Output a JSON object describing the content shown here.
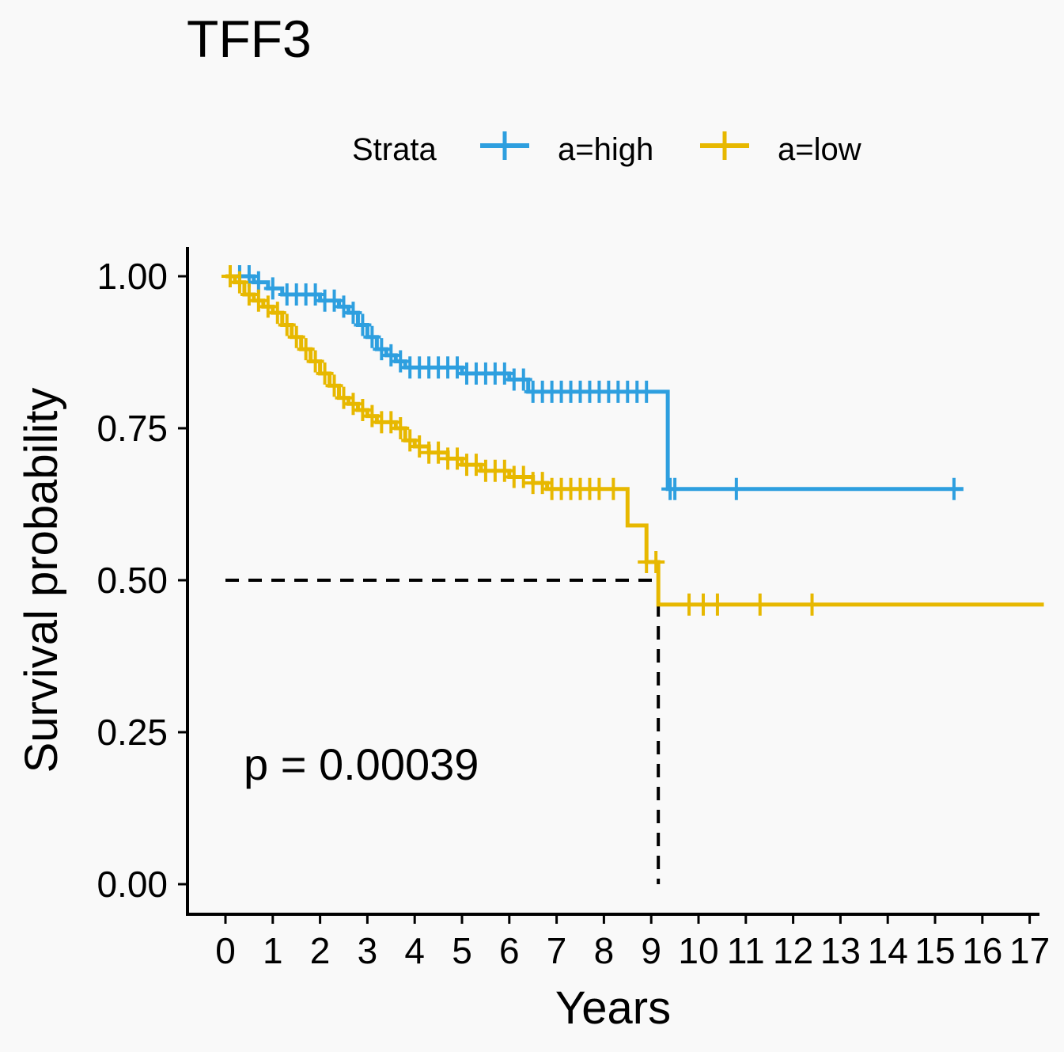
{
  "chart_data": {
    "type": "line",
    "subtype": "kaplan-meier",
    "title": "TFF3",
    "xlabel": "Years",
    "ylabel": "Survival probability",
    "xlim": [
      0,
      17
    ],
    "ylim": [
      0,
      1
    ],
    "x_ticks": [
      0,
      1,
      2,
      3,
      4,
      5,
      6,
      7,
      8,
      9,
      10,
      11,
      12,
      13,
      14,
      15,
      16,
      17
    ],
    "y_ticks": [
      0,
      0.25,
      0.5,
      0.75,
      1.0
    ],
    "y_tick_labels": [
      "0.00",
      "0.25",
      "0.50",
      "0.75",
      "1.00"
    ],
    "grid": false,
    "legend": {
      "title": "Strata",
      "position": "top"
    },
    "annotation": "p = 0.00039",
    "median_line": {
      "y": 0.5,
      "x": 9.15
    },
    "series": [
      {
        "name": "a=high",
        "color": "#2E9FDF",
        "steps": [
          [
            0,
            1.0
          ],
          [
            0.6,
            0.99
          ],
          [
            0.9,
            0.98
          ],
          [
            1.2,
            0.97
          ],
          [
            2.0,
            0.96
          ],
          [
            2.4,
            0.95
          ],
          [
            2.6,
            0.94
          ],
          [
            2.8,
            0.92
          ],
          [
            3.0,
            0.9
          ],
          [
            3.2,
            0.88
          ],
          [
            3.4,
            0.87
          ],
          [
            3.6,
            0.86
          ],
          [
            3.8,
            0.85
          ],
          [
            5.0,
            0.84
          ],
          [
            6.0,
            0.83
          ],
          [
            6.4,
            0.81
          ],
          [
            9.35,
            0.65
          ],
          [
            15.6,
            0.65
          ]
        ],
        "censor_x": [
          0.1,
          0.3,
          0.5,
          0.7,
          1.0,
          1.3,
          1.5,
          1.7,
          1.9,
          2.1,
          2.3,
          2.5,
          2.7,
          2.9,
          3.1,
          3.3,
          3.5,
          3.7,
          3.9,
          4.1,
          4.3,
          4.5,
          4.7,
          4.9,
          5.1,
          5.3,
          5.5,
          5.7,
          5.9,
          6.1,
          6.3,
          6.5,
          6.7,
          6.9,
          7.1,
          7.3,
          7.5,
          7.7,
          7.9,
          8.1,
          8.3,
          8.5,
          8.7,
          8.9,
          9.4,
          9.5,
          10.8,
          15.4
        ]
      },
      {
        "name": "a=low",
        "color": "#E7B800",
        "steps": [
          [
            0,
            1.0
          ],
          [
            0.2,
            0.99
          ],
          [
            0.4,
            0.97
          ],
          [
            0.6,
            0.96
          ],
          [
            0.8,
            0.95
          ],
          [
            1.0,
            0.94
          ],
          [
            1.2,
            0.92
          ],
          [
            1.4,
            0.9
          ],
          [
            1.6,
            0.88
          ],
          [
            1.8,
            0.86
          ],
          [
            2.0,
            0.84
          ],
          [
            2.2,
            0.82
          ],
          [
            2.4,
            0.8
          ],
          [
            2.6,
            0.79
          ],
          [
            2.8,
            0.78
          ],
          [
            3.0,
            0.77
          ],
          [
            3.2,
            0.76
          ],
          [
            3.6,
            0.75
          ],
          [
            3.8,
            0.73
          ],
          [
            4.0,
            0.72
          ],
          [
            4.3,
            0.71
          ],
          [
            4.7,
            0.7
          ],
          [
            5.0,
            0.69
          ],
          [
            5.4,
            0.68
          ],
          [
            6.0,
            0.67
          ],
          [
            6.5,
            0.66
          ],
          [
            6.8,
            0.65
          ],
          [
            8.5,
            0.59
          ],
          [
            8.9,
            0.53
          ],
          [
            9.15,
            0.46
          ],
          [
            17.3,
            0.46
          ]
        ],
        "censor_x": [
          0.1,
          0.3,
          0.5,
          0.7,
          0.9,
          1.1,
          1.3,
          1.5,
          1.7,
          1.9,
          2.1,
          2.3,
          2.5,
          2.7,
          2.9,
          3.1,
          3.3,
          3.5,
          3.7,
          3.9,
          4.1,
          4.3,
          4.5,
          4.7,
          4.9,
          5.1,
          5.3,
          5.5,
          5.7,
          5.9,
          6.1,
          6.3,
          6.5,
          6.7,
          6.9,
          7.1,
          7.3,
          7.5,
          7.7,
          7.9,
          8.2,
          8.9,
          9.1,
          9.8,
          10.1,
          10.4,
          11.3,
          12.4
        ]
      }
    ]
  }
}
